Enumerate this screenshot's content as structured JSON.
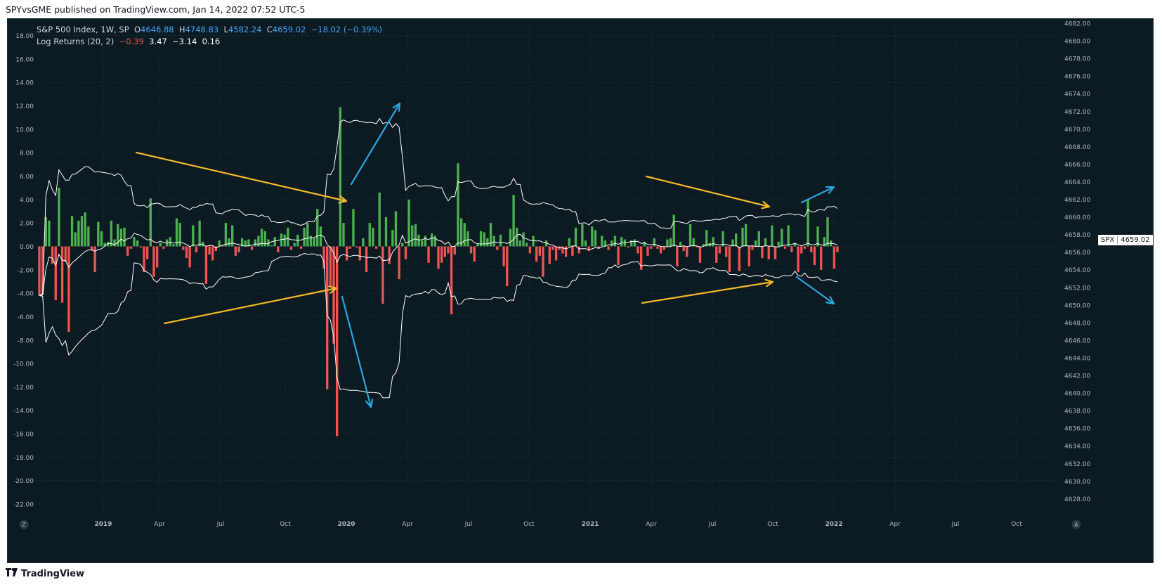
{
  "header": {
    "text": "SPYvsGME published on TradingView.com, Jan 14, 2022 07:52 UTC-5"
  },
  "legend": {
    "symbol": "S&P 500 Index, 1W, SP",
    "o_label": "O",
    "o": "4646.88",
    "h_label": "H",
    "h": "4748.83",
    "l_label": "L",
    "l": "4582.24",
    "c_label": "C",
    "c": "4659.02",
    "change": "−18.02 (−0.39%)",
    "indicator": "Log Returns (20, 2)",
    "v1": "−0.39",
    "v2": "3.47",
    "v3": "−3.14",
    "v4": "0.16"
  },
  "price_label": {
    "symbol": "SPX",
    "value": "4659.02"
  },
  "footer": {
    "logo": "TradingView"
  },
  "corner": {
    "left": "Z",
    "right": "A"
  },
  "colors": {
    "up": "#4caf50",
    "down": "#f05350",
    "bands": "#ffffff",
    "arrow_yellow": "#f5b827",
    "arrow_blue": "#29a8e0",
    "bg": "#0c1a22"
  },
  "chart_data": {
    "type": "bar",
    "x_labels": [
      "2019",
      "Apr",
      "Jul",
      "Oct",
      "2020",
      "Apr",
      "Jul",
      "Oct",
      "2021",
      "Apr",
      "Jul",
      "Oct",
      "2022",
      "Apr",
      "Jul",
      "Oct"
    ],
    "left_axis": {
      "ticks": [
        "18.00",
        "16.00",
        "14.00",
        "12.00",
        "10.00",
        "8.00",
        "6.00",
        "4.00",
        "2.00",
        "0.00",
        "-2.00",
        "-4.00",
        "-6.00",
        "-8.00",
        "-10.00",
        "-12.00",
        "-14.00",
        "-16.00",
        "-18.00",
        "-20.00",
        "-22.00"
      ],
      "ylim": [
        -22,
        18
      ]
    },
    "right_axis": {
      "ticks": [
        "4682.00",
        "4680.00",
        "4678.00",
        "4676.00",
        "4674.00",
        "4672.00",
        "4670.00",
        "4668.00",
        "4666.00",
        "4664.00",
        "4662.00",
        "4660.00",
        "4658.00",
        "4656.00",
        "4654.00",
        "4652.00",
        "4650.00",
        "4648.00",
        "4646.00",
        "4644.00",
        "4642.00",
        "4640.00",
        "4638.00",
        "4636.00",
        "4634.00",
        "4632.00",
        "4630.00",
        "4628.00"
      ]
    },
    "series": [
      {
        "values": [
          -4.2,
          -4.1,
          2.5,
          2.2,
          -1.5,
          -4.6,
          5.0,
          -4.8,
          -1.3,
          -7.3,
          2.6,
          1.2,
          2.2,
          2.6,
          2.9,
          1.7,
          -0.3,
          -2.2,
          2.1,
          1.3,
          0.3,
          0.4,
          2.2,
          0.6,
          1.9,
          1.5,
          1.6,
          -0.8,
          -0.2,
          0.8,
          0.5,
          -0.1,
          -2.2,
          -1.1,
          4.1,
          -2.6,
          -1.8,
          0.3,
          -0.2,
          0.6,
          0.8,
          0.2,
          2.4,
          2.0,
          -0.3,
          -1.0,
          -1.8,
          1.8,
          -0.5,
          2.2,
          0.4,
          -3.2,
          -0.7,
          -1.2,
          -0.4,
          0.5,
          0.1,
          2.0,
          0.7,
          1.8,
          -0.8,
          -0.5,
          0.7,
          0.5,
          0.6,
          -0.3,
          0.6,
          0.9,
          1.5,
          1.3,
          0.6,
          0.1,
          0.8,
          -0.5,
          1.1,
          1.0,
          1.6,
          -0.3,
          0.3,
          1.0,
          -0.2,
          1.6,
          2.0,
          0.9,
          0.7,
          3.2,
          1.7,
          -1.9,
          -12.2,
          -3.5,
          -8.3,
          -16.2,
          11.9,
          2.0,
          -1.2,
          -0.2,
          3.2,
          -0.1,
          -1.2,
          0.7,
          -2.2,
          2.0,
          1.6,
          -0.2,
          4.6,
          -4.9,
          2.5,
          -1.5,
          1.4,
          3.0,
          -2.8,
          0.3,
          -1.1,
          4.0,
          1.8,
          1.9,
          1.0,
          0.5,
          0.9,
          -1.4,
          1.1,
          0.9,
          -1.9,
          -1.4,
          -0.9,
          -0.6,
          -5.8,
          -0.7,
          7.1,
          2.4,
          2.0,
          1.3,
          -0.6,
          -1.3,
          0.2,
          1.3,
          1.2,
          0.7,
          2.0,
          0.9,
          -0.3,
          1.0,
          -1.7,
          -3.4,
          1.5,
          4.4,
          1.6,
          0.5,
          1.2,
          0.3,
          -0.6,
          0.9,
          -1.3,
          -0.8,
          -2.6,
          0.5,
          -1.5,
          -0.3,
          -1.2,
          -0.3,
          -0.6,
          -0.9,
          0.7,
          -0.8,
          1.6,
          -0.6,
          1.9,
          0.5,
          -0.4,
          1.7,
          1.4,
          -0.2,
          0.9,
          0.5,
          -0.3,
          0.5,
          0.9,
          -1.6,
          0.8,
          0.6,
          -0.1,
          0.5,
          0.6,
          -0.6,
          -2.0,
          0.4,
          -0.8,
          -0.2,
          0.7,
          -0.2,
          -0.6,
          -0.3,
          0.6,
          0.7,
          2.7,
          -1.7,
          0.4,
          -0.4,
          -0.9,
          1.9,
          0.7,
          -0.1,
          -1.4,
          0.2,
          1.4,
          0.3,
          0.8,
          -1.4,
          -0.6,
          1.3,
          -0.9,
          -2.2,
          0.6,
          1.1,
          -2.1,
          1.6,
          1.9,
          -1.7,
          -0.3,
          0.5,
          1.3,
          -1.0,
          0.7,
          -1.1,
          1.8,
          -1.1,
          0.4,
          1.5,
          -0.2,
          1.8,
          -0.5,
          0.3,
          -2.2,
          -0.6,
          -0.2,
          4.0,
          -0.5,
          -1.6,
          1.7,
          -2.0,
          0.8,
          2.5,
          0.5,
          -1.9,
          -0.5
        ]
      }
    ]
  }
}
